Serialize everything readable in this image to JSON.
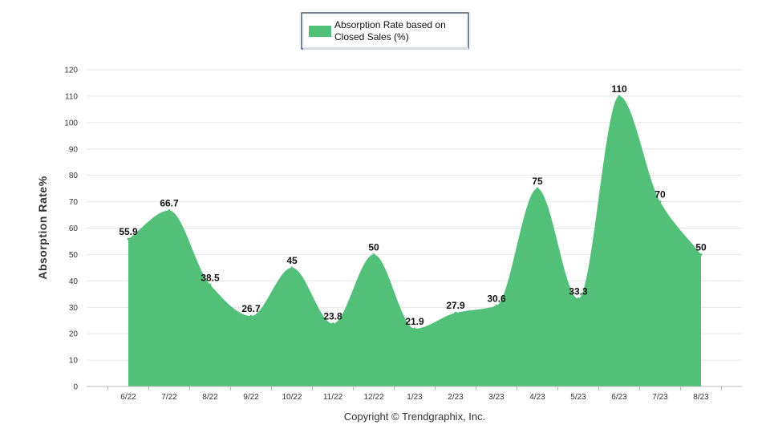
{
  "chart_data": {
    "type": "area",
    "categories": [
      "6/22",
      "7/22",
      "8/22",
      "9/22",
      "10/22",
      "11/22",
      "12/22",
      "1/23",
      "2/23",
      "3/23",
      "4/23",
      "5/23",
      "6/23",
      "7/23",
      "8/23"
    ],
    "series": [
      {
        "name": "Absorption Rate based on Closed Sales (%)",
        "values": [
          55.9,
          66.7,
          38.5,
          26.7,
          45,
          23.8,
          50,
          21.9,
          27.9,
          30.6,
          75,
          33.3,
          110,
          70,
          50
        ],
        "labels": [
          "55.9",
          "66.7",
          "38.5",
          "26.7",
          "45",
          "23.8",
          "50",
          "21.9",
          "27.9",
          "30.6",
          "75",
          "33.3",
          "110",
          "70",
          "50"
        ]
      }
    ],
    "title": "",
    "xlabel": "",
    "ylabel": "Absorption Rate%",
    "ylim": [
      0,
      120
    ],
    "yticks": [
      0,
      10,
      20,
      30,
      40,
      50,
      60,
      70,
      80,
      90,
      100,
      110,
      120
    ],
    "grid": true,
    "legend_position": "top-center",
    "colors": {
      "fill": "#53c07a",
      "grid": "#e6e6e6",
      "legend_border": "#1f3a5a"
    }
  },
  "legend": {
    "line1": "Absorption Rate based on",
    "line2": "Closed Sales (%)"
  },
  "footer": {
    "copyright": "Copyright © Trendgraphix, Inc."
  }
}
